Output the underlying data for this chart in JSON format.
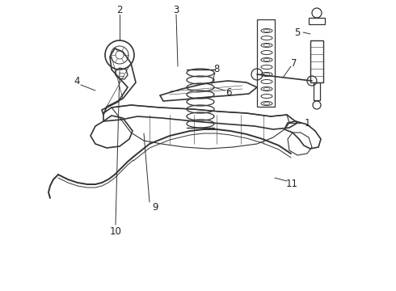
{
  "bg_color": "#ffffff",
  "line_color": "#333333",
  "label_color": "#222222",
  "fig_width": 4.9,
  "fig_height": 3.6,
  "dpi": 100
}
